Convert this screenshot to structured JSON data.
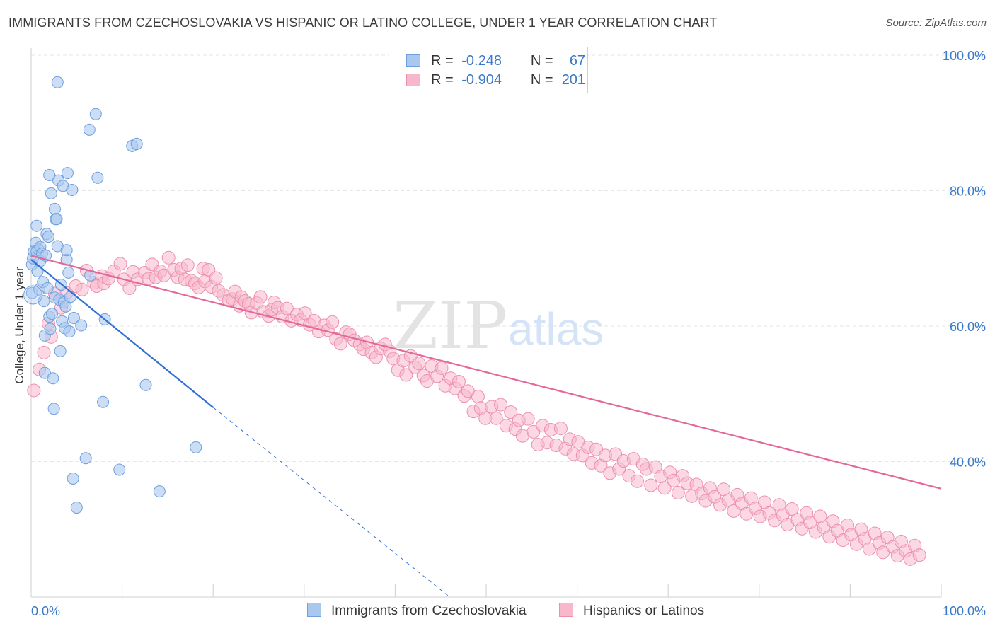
{
  "title": "IMMIGRANTS FROM CZECHOSLOVAKIA VS HISPANIC OR LATINO COLLEGE, UNDER 1 YEAR CORRELATION CHART",
  "source": "Source: ZipAtlas.com",
  "watermark": {
    "zip": "ZIP",
    "atlas": "atlas"
  },
  "legend": {
    "rows": [
      {
        "r_label": "R =",
        "r_value": "-0.248",
        "n_label": "N =",
        "n_value": "67"
      },
      {
        "r_label": "R =",
        "r_value": "-0.904",
        "n_label": "N =",
        "n_value": "201"
      }
    ]
  },
  "bottom_legend": {
    "items": [
      {
        "label": "Immigrants from Czechoslovakia"
      },
      {
        "label": "Hispanics or Latinos"
      }
    ]
  },
  "colors": {
    "blue_fill": "#a9c8f0",
    "blue_stroke": "#6f9fdd",
    "blue_line": "#2f6fd6",
    "pink_fill": "#f7b8cc",
    "pink_stroke": "#ec8fad",
    "pink_line": "#e4679a",
    "tick": "#3a78c9",
    "grid": "#e6e6e6"
  },
  "chart_data": {
    "type": "scatter",
    "title": "IMMIGRANTS FROM CZECHOSLOVAKIA VS HISPANIC OR LATINO COLLEGE, UNDER 1 YEAR CORRELATION CHART",
    "xlabel": "",
    "ylabel": "College, Under 1 year",
    "xlim": [
      0,
      100
    ],
    "ylim": [
      20,
      100
    ],
    "x_tick_labels": [
      "0.0%",
      "100.0%"
    ],
    "y_tick_labels": [
      "100.0%",
      "80.0%",
      "60.0%",
      "40.0%"
    ],
    "y_ticks": [
      100,
      80,
      60,
      40
    ],
    "grid": true,
    "legend_position": "top-center",
    "series": [
      {
        "name": "Immigrants from Czechoslovakia",
        "color": "#a9c8f0",
        "r": -0.248,
        "n": 67,
        "trend": {
          "x": [
            0,
            20
          ],
          "y": [
            69.8,
            48.0
          ],
          "dashed_to": [
            46,
            20
          ]
        },
        "points": [
          [
            0.1,
            64.9
          ],
          [
            0.1,
            69.1
          ],
          [
            0.2,
            70.0
          ],
          [
            0.3,
            71.0
          ],
          [
            0.5,
            72.3
          ],
          [
            0.6,
            71.0
          ],
          [
            0.6,
            74.8
          ],
          [
            0.7,
            68.1
          ],
          [
            0.8,
            71.3
          ],
          [
            0.9,
            65.4
          ],
          [
            1.0,
            71.7
          ],
          [
            1.0,
            69.6
          ],
          [
            1.2,
            70.7
          ],
          [
            1.3,
            66.5
          ],
          [
            1.4,
            63.7
          ],
          [
            1.5,
            58.6
          ],
          [
            1.5,
            53.1
          ],
          [
            1.6,
            70.4
          ],
          [
            1.7,
            73.6
          ],
          [
            1.8,
            65.6
          ],
          [
            1.9,
            73.2
          ],
          [
            2.0,
            61.4
          ],
          [
            2.0,
            82.3
          ],
          [
            2.1,
            59.6
          ],
          [
            2.2,
            79.6
          ],
          [
            2.3,
            61.8
          ],
          [
            2.4,
            52.3
          ],
          [
            2.5,
            47.8
          ],
          [
            2.6,
            64.2
          ],
          [
            2.6,
            77.3
          ],
          [
            2.7,
            75.8
          ],
          [
            2.8,
            75.8
          ],
          [
            2.9,
            71.8
          ],
          [
            2.9,
            96.0
          ],
          [
            3.0,
            81.5
          ],
          [
            3.1,
            63.9
          ],
          [
            3.2,
            56.3
          ],
          [
            3.3,
            66.1
          ],
          [
            3.4,
            60.7
          ],
          [
            3.5,
            80.7
          ],
          [
            3.6,
            63.5
          ],
          [
            3.7,
            59.7
          ],
          [
            3.8,
            62.9
          ],
          [
            3.9,
            69.8
          ],
          [
            3.9,
            71.2
          ],
          [
            4.0,
            82.6
          ],
          [
            4.1,
            67.9
          ],
          [
            4.2,
            59.2
          ],
          [
            4.3,
            64.3
          ],
          [
            4.5,
            80.1
          ],
          [
            4.6,
            37.5
          ],
          [
            4.7,
            61.2
          ],
          [
            5.0,
            33.2
          ],
          [
            5.5,
            60.1
          ],
          [
            6.0,
            40.5
          ],
          [
            6.4,
            89.0
          ],
          [
            6.5,
            67.5
          ],
          [
            7.1,
            91.3
          ],
          [
            7.3,
            81.9
          ],
          [
            7.9,
            48.8
          ],
          [
            8.1,
            61.0
          ],
          [
            9.7,
            38.8
          ],
          [
            11.1,
            86.6
          ],
          [
            11.6,
            86.9
          ],
          [
            12.6,
            51.3
          ],
          [
            14.1,
            35.6
          ],
          [
            18.1,
            42.1
          ]
        ]
      },
      {
        "name": "Hispanics or Latinos",
        "color": "#f7b8cc",
        "r": -0.904,
        "n": 201,
        "trend": {
          "x": [
            0,
            100
          ],
          "y": [
            70.4,
            36.0
          ]
        },
        "points": [
          [
            0.3,
            50.5
          ],
          [
            0.9,
            53.6
          ],
          [
            1.4,
            56.1
          ],
          [
            1.9,
            60.4
          ],
          [
            2.2,
            58.4
          ],
          [
            2.6,
            64.8
          ],
          [
            3.3,
            62.7
          ],
          [
            3.9,
            64.9
          ],
          [
            4.9,
            65.9
          ],
          [
            5.6,
            65.4
          ],
          [
            6.1,
            68.2
          ],
          [
            6.9,
            66.4
          ],
          [
            7.2,
            65.9
          ],
          [
            7.8,
            67.4
          ],
          [
            8.0,
            66.3
          ],
          [
            8.5,
            67.0
          ],
          [
            9.1,
            68.1
          ],
          [
            9.8,
            69.2
          ],
          [
            10.2,
            66.9
          ],
          [
            10.8,
            65.6
          ],
          [
            11.2,
            68.0
          ],
          [
            11.7,
            66.9
          ],
          [
            12.5,
            67.9
          ],
          [
            12.9,
            67.0
          ],
          [
            13.3,
            69.1
          ],
          [
            13.7,
            67.2
          ],
          [
            14.2,
            68.1
          ],
          [
            14.6,
            67.5
          ],
          [
            15.1,
            70.1
          ],
          [
            15.7,
            68.3
          ],
          [
            16.1,
            67.2
          ],
          [
            16.5,
            68.5
          ],
          [
            16.9,
            66.9
          ],
          [
            17.2,
            69.0
          ],
          [
            17.6,
            66.7
          ],
          [
            18.0,
            66.3
          ],
          [
            18.4,
            65.7
          ],
          [
            18.9,
            68.5
          ],
          [
            19.1,
            66.6
          ],
          [
            19.5,
            68.3
          ],
          [
            19.8,
            65.8
          ],
          [
            20.3,
            67.1
          ],
          [
            20.6,
            65.2
          ],
          [
            21.1,
            64.6
          ],
          [
            21.7,
            63.8
          ],
          [
            22.1,
            64.0
          ],
          [
            22.4,
            65.1
          ],
          [
            22.9,
            63.0
          ],
          [
            23.1,
            64.3
          ],
          [
            23.5,
            63.7
          ],
          [
            23.9,
            63.3
          ],
          [
            24.2,
            62.0
          ],
          [
            24.8,
            63.4
          ],
          [
            25.2,
            64.3
          ],
          [
            25.5,
            62.1
          ],
          [
            26.1,
            61.5
          ],
          [
            26.4,
            62.4
          ],
          [
            26.7,
            63.5
          ],
          [
            27.1,
            62.7
          ],
          [
            27.6,
            61.4
          ],
          [
            28.1,
            62.6
          ],
          [
            28.6,
            60.8
          ],
          [
            29.2,
            61.7
          ],
          [
            29.6,
            60.9
          ],
          [
            30.1,
            61.9
          ],
          [
            30.6,
            60.2
          ],
          [
            31.1,
            60.8
          ],
          [
            31.6,
            59.2
          ],
          [
            32.2,
            60.1
          ],
          [
            32.6,
            59.4
          ],
          [
            33.1,
            60.6
          ],
          [
            33.5,
            58.1
          ],
          [
            34.0,
            57.4
          ],
          [
            34.6,
            59.1
          ],
          [
            35.0,
            58.8
          ],
          [
            35.5,
            57.9
          ],
          [
            36.1,
            57.3
          ],
          [
            36.5,
            56.6
          ],
          [
            36.9,
            57.6
          ],
          [
            37.4,
            56.1
          ],
          [
            37.9,
            55.4
          ],
          [
            38.4,
            56.7
          ],
          [
            38.9,
            57.3
          ],
          [
            39.4,
            56.3
          ],
          [
            39.8,
            55.2
          ],
          [
            40.3,
            53.5
          ],
          [
            40.9,
            54.9
          ],
          [
            41.2,
            52.8
          ],
          [
            41.7,
            55.6
          ],
          [
            42.2,
            53.9
          ],
          [
            42.6,
            54.5
          ],
          [
            43.1,
            52.7
          ],
          [
            43.5,
            51.9
          ],
          [
            44.0,
            54.1
          ],
          [
            44.6,
            52.6
          ],
          [
            45.1,
            53.8
          ],
          [
            45.5,
            51.2
          ],
          [
            46.1,
            52.3
          ],
          [
            46.6,
            50.8
          ],
          [
            47.0,
            51.8
          ],
          [
            47.6,
            49.7
          ],
          [
            48.0,
            50.4
          ],
          [
            48.6,
            47.4
          ],
          [
            49.1,
            49.6
          ],
          [
            49.4,
            47.9
          ],
          [
            49.9,
            46.4
          ],
          [
            50.6,
            48.1
          ],
          [
            51.1,
            46.4
          ],
          [
            51.6,
            48.4
          ],
          [
            52.2,
            45.3
          ],
          [
            52.7,
            47.3
          ],
          [
            53.2,
            44.8
          ],
          [
            53.6,
            46.1
          ],
          [
            54.0,
            43.8
          ],
          [
            54.6,
            46.3
          ],
          [
            55.2,
            44.4
          ],
          [
            55.7,
            42.5
          ],
          [
            56.2,
            45.3
          ],
          [
            56.7,
            42.8
          ],
          [
            57.1,
            44.7
          ],
          [
            57.7,
            42.4
          ],
          [
            58.2,
            44.9
          ],
          [
            58.7,
            41.9
          ],
          [
            59.2,
            43.3
          ],
          [
            59.6,
            41.1
          ],
          [
            60.1,
            42.9
          ],
          [
            60.6,
            40.9
          ],
          [
            61.2,
            42.1
          ],
          [
            61.6,
            39.8
          ],
          [
            62.1,
            41.8
          ],
          [
            62.6,
            39.4
          ],
          [
            63.1,
            40.9
          ],
          [
            63.6,
            38.3
          ],
          [
            64.2,
            41.1
          ],
          [
            64.6,
            38.9
          ],
          [
            65.1,
            40.1
          ],
          [
            65.7,
            37.9
          ],
          [
            66.2,
            40.4
          ],
          [
            66.6,
            37.1
          ],
          [
            67.2,
            39.6
          ],
          [
            67.6,
            38.9
          ],
          [
            68.1,
            36.5
          ],
          [
            68.6,
            39.2
          ],
          [
            69.2,
            37.8
          ],
          [
            69.6,
            36.1
          ],
          [
            70.2,
            38.4
          ],
          [
            70.6,
            37.2
          ],
          [
            71.1,
            35.4
          ],
          [
            71.6,
            37.9
          ],
          [
            72.1,
            36.8
          ],
          [
            72.6,
            34.9
          ],
          [
            73.1,
            36.6
          ],
          [
            73.7,
            35.3
          ],
          [
            74.1,
            34.2
          ],
          [
            74.6,
            36.1
          ],
          [
            75.1,
            34.8
          ],
          [
            75.7,
            33.6
          ],
          [
            76.1,
            35.9
          ],
          [
            76.6,
            34.3
          ],
          [
            77.2,
            32.7
          ],
          [
            77.6,
            35.1
          ],
          [
            78.1,
            33.8
          ],
          [
            78.6,
            32.3
          ],
          [
            79.1,
            34.6
          ],
          [
            79.6,
            33.1
          ],
          [
            80.1,
            31.9
          ],
          [
            80.6,
            34.0
          ],
          [
            81.1,
            32.4
          ],
          [
            81.7,
            31.3
          ],
          [
            82.2,
            33.6
          ],
          [
            82.6,
            32.1
          ],
          [
            83.1,
            30.7
          ],
          [
            83.6,
            33.0
          ],
          [
            84.2,
            31.4
          ],
          [
            84.7,
            30.1
          ],
          [
            85.2,
            32.4
          ],
          [
            85.6,
            31.0
          ],
          [
            86.2,
            29.6
          ],
          [
            86.7,
            31.9
          ],
          [
            87.1,
            30.3
          ],
          [
            87.7,
            28.9
          ],
          [
            88.1,
            31.2
          ],
          [
            88.6,
            29.8
          ],
          [
            89.2,
            28.4
          ],
          [
            89.7,
            30.6
          ],
          [
            90.1,
            29.2
          ],
          [
            90.7,
            27.8
          ],
          [
            91.2,
            30.0
          ],
          [
            91.6,
            28.6
          ],
          [
            92.1,
            27.1
          ],
          [
            92.7,
            29.4
          ],
          [
            93.2,
            28.0
          ],
          [
            93.6,
            26.6
          ],
          [
            94.1,
            28.8
          ],
          [
            94.7,
            27.4
          ],
          [
            95.2,
            26.1
          ],
          [
            95.6,
            28.2
          ],
          [
            96.1,
            26.8
          ],
          [
            96.6,
            25.6
          ],
          [
            97.1,
            27.6
          ],
          [
            97.6,
            26.2
          ]
        ]
      }
    ]
  }
}
